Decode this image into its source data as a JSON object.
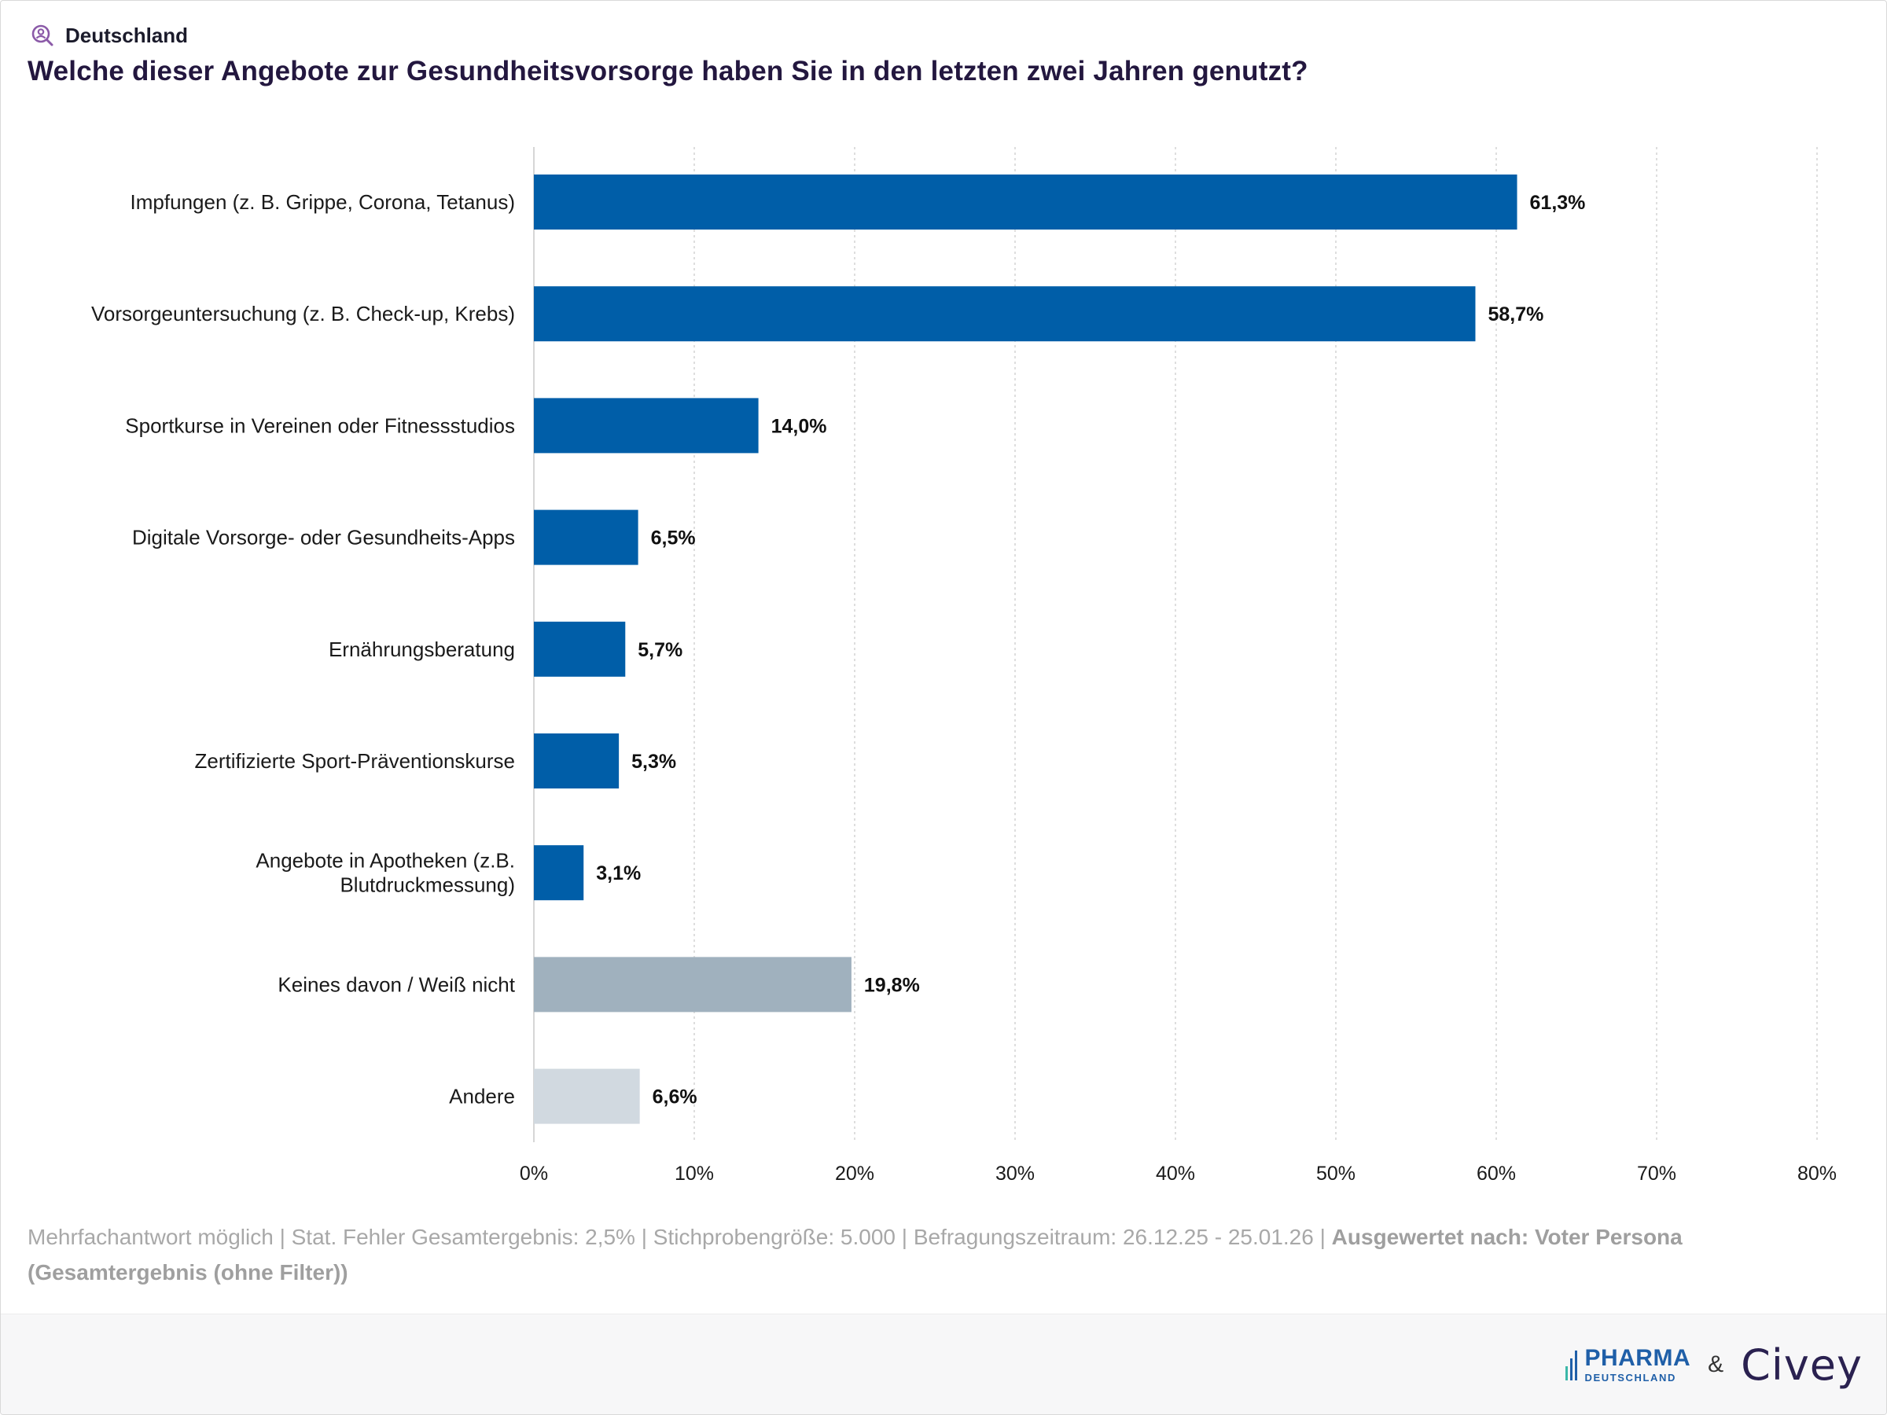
{
  "header": {
    "region": "Deutschland",
    "title": "Welche dieser Angebote zur Gesundheitsvorsorge haben Sie in den letzten zwei Jahren genutzt?"
  },
  "chart_data": {
    "type": "bar",
    "orientation": "horizontal",
    "categories": [
      [
        "Impfungen (z. B. Grippe, Corona, Tetanus)"
      ],
      [
        "Vorsorgeuntersuchung (z. B. Check-up, Krebs)"
      ],
      [
        "Sportkurse in Vereinen oder Fitnessstudios"
      ],
      [
        "Digitale Vorsorge- oder Gesundheits-Apps"
      ],
      [
        "Ernährungsberatung"
      ],
      [
        "Zertifizierte Sport-Präventionskurse"
      ],
      [
        "Angebote in Apotheken (z.B.",
        "Blutdruckmessung)"
      ],
      [
        "Keines davon / Weiß nicht"
      ],
      [
        "Andere"
      ]
    ],
    "values": [
      61.3,
      58.7,
      14.0,
      6.5,
      5.7,
      5.3,
      3.1,
      19.8,
      6.6
    ],
    "value_labels": [
      "61,3%",
      "58,7%",
      "14,0%",
      "6,5%",
      "5,7%",
      "5,3%",
      "3,1%",
      "19,8%",
      "6,6%"
    ],
    "bar_colors": [
      "#005ea8",
      "#005ea8",
      "#005ea8",
      "#005ea8",
      "#005ea8",
      "#005ea8",
      "#005ea8",
      "#a0b1be",
      "#d1d9e0"
    ],
    "xlim": [
      0,
      80
    ],
    "ticks": [
      0,
      10,
      20,
      30,
      40,
      50,
      60,
      70,
      80
    ],
    "tick_labels": [
      "0%",
      "10%",
      "20%",
      "30%",
      "40%",
      "50%",
      "60%",
      "70%",
      "80%"
    ],
    "grid": true
  },
  "footnote": {
    "text": "Mehrfachantwort möglich | Stat. Fehler Gesamtergebnis: 2,5% | Stichprobengröße: 5.000 | Befragungszeitraum: 26.12.25 - 25.01.26 | ",
    "bold_text": "Ausgewertet nach: Voter Persona (Gesamtergebnis (ohne Filter))"
  },
  "branding": {
    "partner_top": "PHARMA",
    "partner_bottom": "DEUTSCHLAND",
    "ampersand": "&",
    "brand": "Civey",
    "brand_color": "#2a2150",
    "partner_color": "#1f5fa8"
  }
}
